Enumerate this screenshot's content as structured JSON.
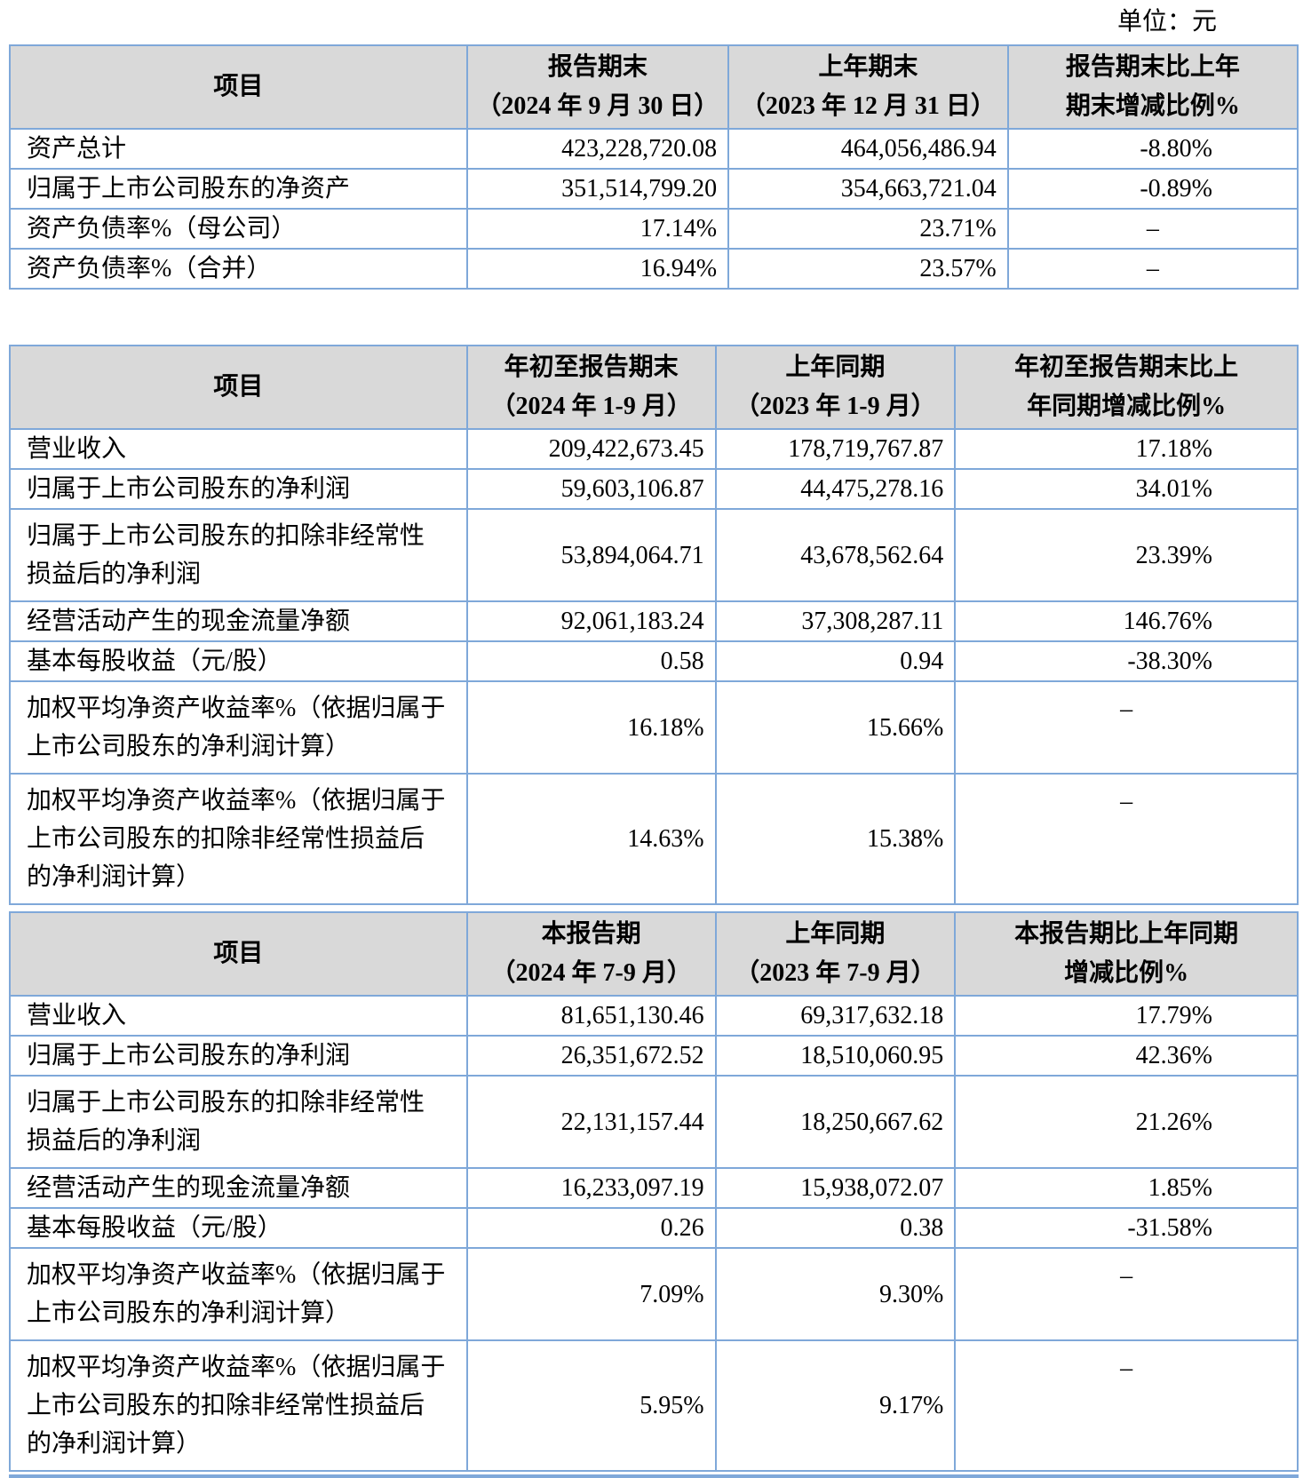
{
  "unit_label": "单位：元",
  "colors": {
    "table_border": "#7FA8D9",
    "header_bg": "#D9D9D9",
    "text": "#000000"
  },
  "tables": [
    {
      "name": "assets-summary",
      "columns": [
        {
          "header_lines": [
            "项目"
          ]
        },
        {
          "header_lines": [
            "报告期末",
            "（2024 年 9 月 30 日）"
          ]
        },
        {
          "header_lines": [
            "上年期末",
            "（2023 年 12 月 31 日）"
          ]
        },
        {
          "header_lines": [
            "报告期末比上年",
            "期末增减比例%"
          ]
        }
      ],
      "rows": [
        {
          "label": "资产总计",
          "current": "423,228,720.08",
          "prior": "464,056,486.94",
          "change": "-8.80%"
        },
        {
          "label": "归属于上市公司股东的净资产",
          "current": "351,514,799.20",
          "prior": "354,663,721.04",
          "change": "-0.89%"
        },
        {
          "label": "资产负债率%（母公司）",
          "current": "17.14%",
          "prior": "23.71%",
          "change": "–"
        },
        {
          "label": "资产负债率%（合并）",
          "current": "16.94%",
          "prior": "23.57%",
          "change": "–"
        }
      ]
    },
    {
      "name": "ytd-summary",
      "columns": [
        {
          "header_lines": [
            "项目"
          ]
        },
        {
          "header_lines": [
            "年初至报告期末",
            "（2024 年 1-9 月）"
          ]
        },
        {
          "header_lines": [
            "上年同期",
            "（2023 年 1-9 月）"
          ]
        },
        {
          "header_lines": [
            "年初至报告期末比上",
            "年同期增减比例%"
          ]
        }
      ],
      "rows": [
        {
          "label": "营业收入",
          "current": "209,422,673.45",
          "prior": "178,719,767.87",
          "change": "17.18%"
        },
        {
          "label": "归属于上市公司股东的净利润",
          "current": "59,603,106.87",
          "prior": "44,475,278.16",
          "change": "34.01%"
        },
        {
          "label": "归属于上市公司股东的扣除非经常性\n损益后的净利润",
          "current": "53,894,064.71",
          "prior": "43,678,562.64",
          "change": "23.39%"
        },
        {
          "label": "经营活动产生的现金流量净额",
          "current": "92,061,183.24",
          "prior": "37,308,287.11",
          "change": "146.76%"
        },
        {
          "label": "基本每股收益（元/股）",
          "current": "0.58",
          "prior": "0.94",
          "change": "-38.30%"
        },
        {
          "label": "加权平均净资产收益率%（依据归属于\n上市公司股东的净利润计算）",
          "current": "16.18%",
          "prior": "15.66%",
          "change": "–"
        },
        {
          "label": "加权平均净资产收益率%（依据归属于\n上市公司股东的扣除非经常性损益后\n的净利润计算）",
          "current": "14.63%",
          "prior": "15.38%",
          "change": "–"
        }
      ]
    },
    {
      "name": "quarter-summary",
      "columns": [
        {
          "header_lines": [
            "项目"
          ]
        },
        {
          "header_lines": [
            "本报告期",
            "（2024 年 7-9 月）"
          ]
        },
        {
          "header_lines": [
            "上年同期",
            "（2023 年 7-9 月）"
          ]
        },
        {
          "header_lines": [
            "本报告期比上年同期",
            "增减比例%"
          ]
        }
      ],
      "rows": [
        {
          "label": "营业收入",
          "current": "81,651,130.46",
          "prior": "69,317,632.18",
          "change": "17.79%"
        },
        {
          "label": "归属于上市公司股东的净利润",
          "current": "26,351,672.52",
          "prior": "18,510,060.95",
          "change": "42.36%"
        },
        {
          "label": "归属于上市公司股东的扣除非经常性\n损益后的净利润",
          "current": "22,131,157.44",
          "prior": "18,250,667.62",
          "change": "21.26%"
        },
        {
          "label": "经营活动产生的现金流量净额",
          "current": "16,233,097.19",
          "prior": "15,938,072.07",
          "change": "1.85%"
        },
        {
          "label": "基本每股收益（元/股）",
          "current": "0.26",
          "prior": "0.38",
          "change": "-31.58%"
        },
        {
          "label": "加权平均净资产收益率%（依据归属于\n上市公司股东的净利润计算）",
          "current": "7.09%",
          "prior": "9.30%",
          "change": "–"
        },
        {
          "label": "加权平均净资产收益率%（依据归属于\n上市公司股东的扣除非经常性损益后\n的净利润计算）",
          "current": "5.95%",
          "prior": "9.17%",
          "change": "–"
        }
      ]
    }
  ]
}
